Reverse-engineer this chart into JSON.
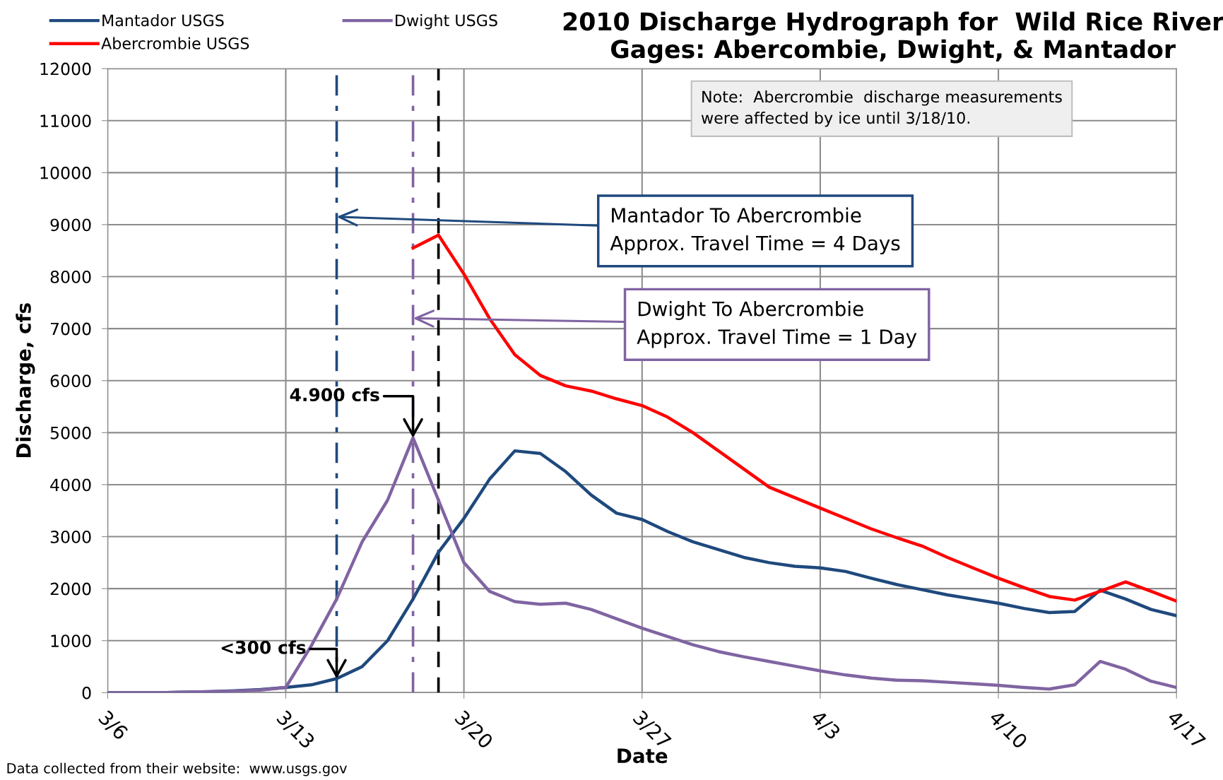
{
  "chart_data": {
    "type": "line",
    "title": "2010 Discharge Hydrograph for  Wild Rice River\nGages: Abercombie, Dwight, & Mantador",
    "xlabel": "Date",
    "ylabel": "Discharge, cfs",
    "x": [
      "2010-03-06",
      "2010-03-07",
      "2010-03-08",
      "2010-03-09",
      "2010-03-10",
      "2010-03-11",
      "2010-03-12",
      "2010-03-13",
      "2010-03-14",
      "2010-03-15",
      "2010-03-16",
      "2010-03-17",
      "2010-03-18",
      "2010-03-19",
      "2010-03-20",
      "2010-03-21",
      "2010-03-22",
      "2010-03-23",
      "2010-03-24",
      "2010-03-25",
      "2010-03-26",
      "2010-03-27",
      "2010-03-28",
      "2010-03-29",
      "2010-03-30",
      "2010-03-31",
      "2010-04-01",
      "2010-04-02",
      "2010-04-03",
      "2010-04-04",
      "2010-04-05",
      "2010-04-06",
      "2010-04-07",
      "2010-04-08",
      "2010-04-09",
      "2010-04-10",
      "2010-04-11",
      "2010-04-12",
      "2010-04-13",
      "2010-04-14",
      "2010-04-15",
      "2010-04-16",
      "2010-04-17"
    ],
    "series": [
      {
        "name": "Mantador USGS",
        "color": "#1f497d",
        "values": [
          0,
          0,
          0,
          10,
          20,
          35,
          60,
          100,
          150,
          270,
          500,
          1000,
          1800,
          2700,
          3350,
          4100,
          4650,
          4600,
          4250,
          3800,
          3450,
          3330,
          3100,
          2900,
          2750,
          2600,
          2500,
          2430,
          2400,
          2330,
          2200,
          2080,
          1980,
          1880,
          1800,
          1720,
          1620,
          1540,
          1560,
          1970,
          1800,
          1600,
          1480
        ]
      },
      {
        "name": "Dwight USGS",
        "color": "#8064a2",
        "values": [
          0,
          0,
          0,
          10,
          20,
          30,
          50,
          100,
          900,
          1800,
          2900,
          3700,
          4900,
          3700,
          2500,
          1950,
          1750,
          1700,
          1720,
          1600,
          1420,
          1240,
          1080,
          920,
          790,
          690,
          600,
          510,
          420,
          340,
          280,
          240,
          230,
          200,
          170,
          140,
          100,
          70,
          150,
          600,
          450,
          220,
          100
        ]
      },
      {
        "name": "Abercrombie USGS",
        "color": "#ff0000",
        "values": [
          null,
          null,
          null,
          null,
          null,
          null,
          null,
          null,
          null,
          null,
          null,
          null,
          8550,
          8800,
          8050,
          7200,
          6500,
          6100,
          5900,
          5800,
          5650,
          5520,
          5300,
          5000,
          4650,
          4300,
          3950,
          3750,
          3550,
          3350,
          3150,
          2980,
          2820,
          2600,
          2400,
          2200,
          2020,
          1850,
          1780,
          1950,
          2130,
          1950,
          1760
        ]
      }
    ],
    "xlim": [
      "2010-03-06",
      "2010-04-17"
    ],
    "xticks": [
      {
        "value": "2010-03-06",
        "label": "3/6"
      },
      {
        "value": "2010-03-13",
        "label": "3/13"
      },
      {
        "value": "2010-03-20",
        "label": "3/20"
      },
      {
        "value": "2010-03-27",
        "label": "3/27"
      },
      {
        "value": "2010-04-03",
        "label": "4/3"
      },
      {
        "value": "2010-04-10",
        "label": "4/10"
      },
      {
        "value": "2010-04-17",
        "label": "4/17"
      }
    ],
    "ylim": [
      0,
      12000
    ],
    "yticks": [
      0,
      1000,
      2000,
      3000,
      4000,
      5000,
      6000,
      7000,
      8000,
      9000,
      10000,
      11000,
      12000
    ],
    "ref_lines": [
      {
        "axis": "x",
        "value": "2010-03-15",
        "label": null,
        "color": "#1f497d",
        "line_style": "dashdot"
      },
      {
        "axis": "x",
        "value": "2010-03-18",
        "label": null,
        "color": "#8064a2",
        "line_style": "dashdot"
      },
      {
        "axis": "x",
        "value": "2010-03-19",
        "label": null,
        "color": "#000000",
        "line_style": "dashed"
      }
    ],
    "annotations": [
      {
        "text": "4.900 cfs",
        "x": "2010-03-18",
        "y": 4900
      },
      {
        "text": "<300 cfs",
        "x": "2010-03-15",
        "y": 270
      },
      {
        "text": "Mantador To Abercrombie\nApprox. Travel Time = 4 Days",
        "x": "2010-03-15",
        "y": 9150
      },
      {
        "text": "Dwight To Abercrombie\nApprox. Travel Time = 1 Day",
        "x": "2010-03-18",
        "y": 7200
      },
      "Note:  Abercrombie  discharge measurements\nwere affected by ice until 3/18/10.",
      "Data collected from their website:  www.usgs.gov"
    ],
    "grid": true,
    "legend": "top left",
    "marker": "none",
    "line_style": "solid"
  }
}
